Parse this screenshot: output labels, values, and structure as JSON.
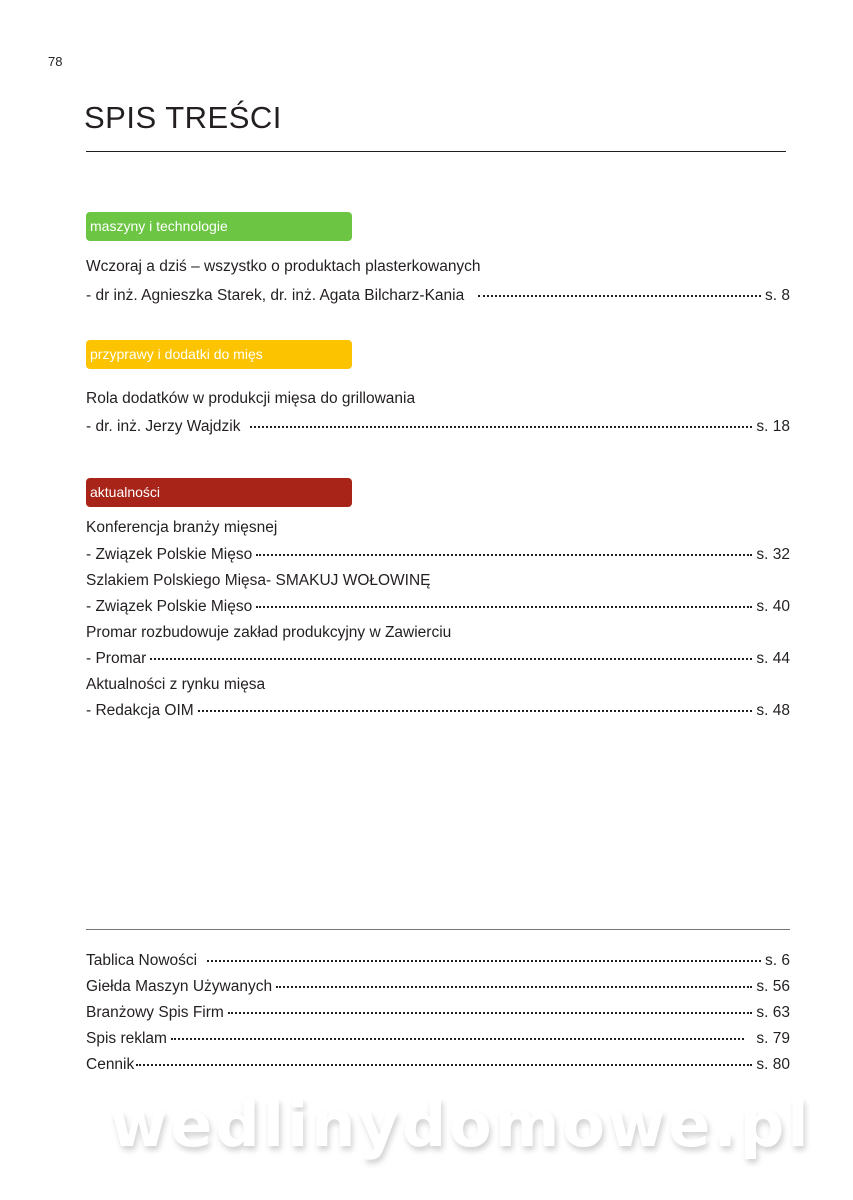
{
  "page_number": "78",
  "title": "SPIS TREŚCI",
  "sections": [
    {
      "label": "maszyny i technologie",
      "color": "#6cc644",
      "entries": [
        {
          "title": "Wczoraj a dziś – wszystko o produktach plasterkowanych",
          "author": "- dr inż. Agnieszka Starek, dr. inż. Agata Bilcharz-Kania",
          "page": "s. 8"
        }
      ]
    },
    {
      "label": "przyprawy i dodatki do mięs",
      "color": "#fcc300",
      "entries": [
        {
          "title": "Rola dodatków w produkcji mięsa do grillowania",
          "author": "- dr. inż. Jerzy Wajdzik",
          "page": "s. 18"
        }
      ]
    },
    {
      "label": "aktualności",
      "color": "#a82418",
      "entries": [
        {
          "title": "Konferencja branży mięsnej",
          "author": "- Związek Polskie Mięso",
          "page": "s. 32"
        },
        {
          "title": "Szlakiem Polskiego Mięsa- SMAKUJ WOŁOWINĘ",
          "author": "- Związek Polskie Mięso",
          "page": "s. 40"
        },
        {
          "title": "Promar rozbudowuje zakład produkcyjny w Zawierciu",
          "author": "- Promar",
          "page": "s. 44"
        },
        {
          "title": "Aktualności z rynku mięsa",
          "author": "- Redakcja OIM",
          "page": "s. 48"
        }
      ]
    }
  ],
  "extras": [
    {
      "label": "Tablica Nowości",
      "page": "s. 6"
    },
    {
      "label": "Giełda Maszyn Używanych",
      "page": "s. 56"
    },
    {
      "label": "Branżowy Spis Firm",
      "page": "s. 63"
    },
    {
      "label": "Spis reklam",
      "page": "s. 79"
    },
    {
      "label": "Cennik",
      "page": "s. 80"
    }
  ],
  "watermark": "wedlinydomowe.pl"
}
